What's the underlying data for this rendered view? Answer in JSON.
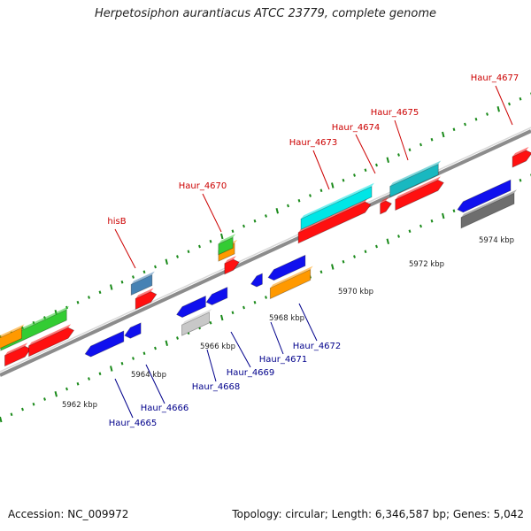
{
  "title": "Herpetosiphon aurantiacus ATCC 23779, complete genome",
  "footer": {
    "accession_label": "Accession:",
    "accession": "NC_009972",
    "topology_text": "Topology: circular; Length: 6,346,587 bp; Genes: 5,042"
  },
  "colors": {
    "backbone": "#8c8c8c",
    "ruler_dots": "#1a8a1a",
    "label_top": "#cc0000",
    "label_bottom": "#00008b",
    "scale_text": "#222222"
  },
  "scale": {
    "unit": "kbp",
    "ticks": [
      {
        "kbp": 5962,
        "label": "5962 kbp"
      },
      {
        "kbp": 5964,
        "label": "5964 kbp"
      },
      {
        "kbp": 5966,
        "label": "5966 kbp"
      },
      {
        "kbp": 5968,
        "label": "5968 kbp"
      },
      {
        "kbp": 5970,
        "label": "5970 kbp"
      },
      {
        "kbp": 5972,
        "label": "5972 kbp"
      },
      {
        "kbp": 5974,
        "label": "5974 kbp"
      }
    ]
  },
  "gene_labels_top": [
    {
      "name": "hisB"
    },
    {
      "name": "Haur_4670"
    },
    {
      "name": "Haur_4673"
    },
    {
      "name": "Haur_4674"
    },
    {
      "name": "Haur_4675"
    },
    {
      "name": "Haur_4677"
    }
  ],
  "gene_labels_bottom": [
    {
      "name": "Haur_4665"
    },
    {
      "name": "Haur_4666"
    },
    {
      "name": "Haur_4668"
    },
    {
      "name": "Haur_4669"
    },
    {
      "name": "Haur_4671"
    },
    {
      "name": "Haur_4672"
    }
  ],
  "gene_colors": {
    "red": "#ff1010",
    "green": "#33cc33",
    "orange": "#ff9900",
    "blue": "#1010ee",
    "cyan": "#00e6e6",
    "teal": "#19b8c0",
    "steel": "#4682b4",
    "gray": "#6e6e6e",
    "lightgray": "#c8c8c8"
  }
}
